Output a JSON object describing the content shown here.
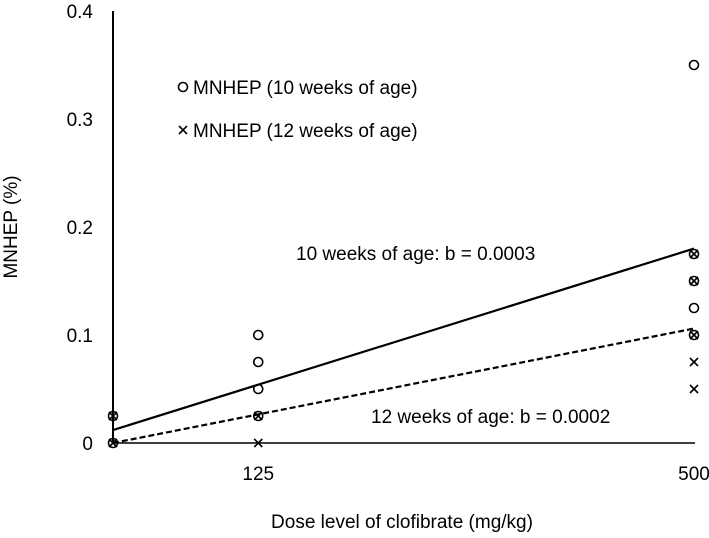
{
  "chart_data": {
    "type": "scatter",
    "title": "",
    "xlabel": "Dose level of clofibrate (mg/kg)",
    "ylabel": "MNHEP (%)",
    "ylim": [
      0,
      0.4
    ],
    "yticks": [
      0,
      0.1,
      0.2,
      0.3,
      0.4
    ],
    "ytick_labels": [
      "0",
      "0.1",
      "0.2",
      "0.3",
      "0.4"
    ],
    "xticks": [
      125,
      500
    ],
    "xtick_labels": [
      "125",
      "500"
    ],
    "xlim": [
      0,
      500
    ],
    "grid": false,
    "legend_position": "top-left",
    "series": [
      {
        "name": "MNHEP (10 weeks of age)",
        "marker": "circle",
        "points": [
          {
            "x": 0,
            "y": 0.0
          },
          {
            "x": 0,
            "y": 0.025
          },
          {
            "x": 125,
            "y": 0.025
          },
          {
            "x": 125,
            "y": 0.05
          },
          {
            "x": 125,
            "y": 0.075
          },
          {
            "x": 125,
            "y": 0.1
          },
          {
            "x": 500,
            "y": 0.1
          },
          {
            "x": 500,
            "y": 0.125
          },
          {
            "x": 500,
            "y": 0.15
          },
          {
            "x": 500,
            "y": 0.175
          },
          {
            "x": 500,
            "y": 0.35
          }
        ],
        "trend": {
          "intercept": 0.012,
          "slope": 0.000336,
          "line_style": "solid",
          "label": "10 weeks of age: b = 0.0003"
        }
      },
      {
        "name": "MNHEP (12 weeks of age)",
        "marker": "x",
        "points": [
          {
            "x": 0,
            "y": 0.0
          },
          {
            "x": 0,
            "y": 0.025
          },
          {
            "x": 125,
            "y": 0.0
          },
          {
            "x": 125,
            "y": 0.025
          },
          {
            "x": 500,
            "y": 0.05
          },
          {
            "x": 500,
            "y": 0.075
          },
          {
            "x": 500,
            "y": 0.1
          },
          {
            "x": 500,
            "y": 0.15
          },
          {
            "x": 500,
            "y": 0.175
          }
        ],
        "trend": {
          "intercept": 0.0,
          "slope": 0.000212,
          "line_style": "dashed",
          "label": "12 weeks of age: b = 0.0002"
        }
      }
    ]
  }
}
